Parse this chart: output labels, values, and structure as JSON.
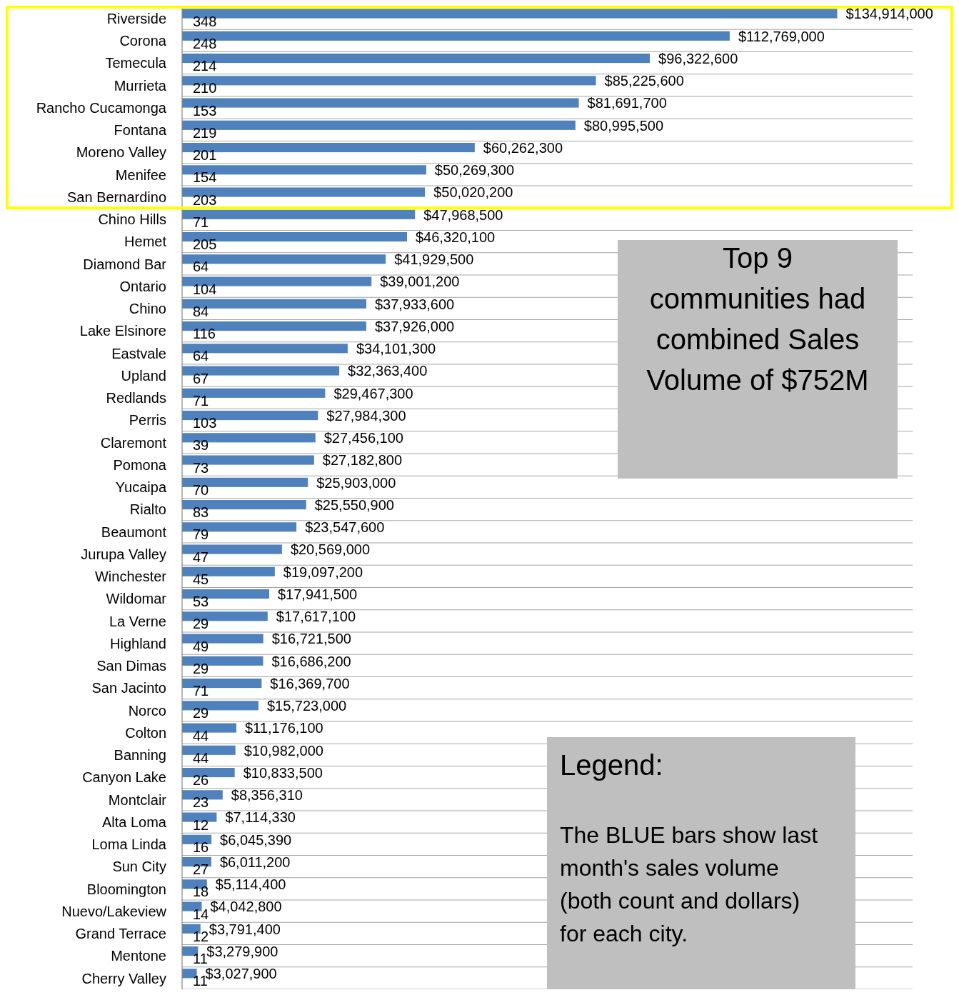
{
  "chart_data": {
    "type": "bar",
    "orientation": "horizontal",
    "grid": true,
    "categories": [
      "Riverside",
      "Corona",
      "Temecula",
      "Murrieta",
      "Rancho Cucamonga",
      "Fontana",
      "Moreno Valley",
      "Menifee",
      "San Bernardino",
      "Chino Hills",
      "Hemet",
      "Diamond Bar",
      "Ontario",
      "Chino",
      "Lake Elsinore",
      "Eastvale",
      "Upland",
      "Redlands",
      "Perris",
      "Claremont",
      "Pomona",
      "Yucaipa",
      "Rialto",
      "Beaumont",
      "Jurupa Valley",
      "Winchester",
      "Wildomar",
      "La Verne",
      "Highland",
      "San Dimas",
      "San Jacinto",
      "Norco",
      "Colton",
      "Banning",
      "Canyon Lake",
      "Montclair",
      "Alta Loma",
      "Loma Linda",
      "Sun City",
      "Bloomington",
      "Nuevo/Lakeview",
      "Grand Terrace",
      "Mentone",
      "Cherry Valley"
    ],
    "series": [
      {
        "color": "#4f81bd",
        "values": [
          134914000,
          112769000,
          96322600,
          85225600,
          81691700,
          80995500,
          60262300,
          50269300,
          50020200,
          47968500,
          46320100,
          41929500,
          39001200,
          37933600,
          37926000,
          34101300,
          32363400,
          29467300,
          27984300,
          27456100,
          27182800,
          25903000,
          25550900,
          23547600,
          20569000,
          19097200,
          17941500,
          17617100,
          16721500,
          16686200,
          16369700,
          15723000,
          11176100,
          10982000,
          10833500,
          8356310,
          7114330,
          6045390,
          6011200,
          5114400,
          4042800,
          3791400,
          3279900,
          3027900
        ],
        "value_labels": [
          "$134,914,000",
          "$112,769,000",
          "$96,322,600",
          "$85,225,600",
          "$81,691,700",
          "$80,995,500",
          "$60,262,300",
          "$50,269,300",
          "$50,020,200",
          "$47,968,500",
          "$46,320,100",
          "$41,929,500",
          "$39,001,200",
          "$37,933,600",
          "$37,926,000",
          "$34,101,300",
          "$32,363,400",
          "$29,467,300",
          "$27,984,300",
          "$27,456,100",
          "$27,182,800",
          "$25,903,000",
          "$25,550,900",
          "$23,547,600",
          "$20,569,000",
          "$19,097,200",
          "$17,941,500",
          "$17,617,100",
          "$16,721,500",
          "$16,686,200",
          "$16,369,700",
          "$15,723,000",
          "$11,176,100",
          "$10,982,000",
          "$10,833,500",
          "$8,356,310",
          "$7,114,330",
          "$6,045,390",
          "$6,011,200",
          "$5,114,400",
          "$4,042,800",
          "$3,791,400",
          "$3,279,900",
          "$3,027,900"
        ]
      },
      {
        "color": "#c0504d",
        "values": [
          348,
          248,
          214,
          210,
          153,
          219,
          201,
          154,
          203,
          71,
          205,
          64,
          104,
          84,
          116,
          64,
          67,
          71,
          103,
          39,
          73,
          70,
          83,
          79,
          47,
          45,
          53,
          29,
          49,
          29,
          71,
          29,
          44,
          44,
          26,
          23,
          12,
          16,
          27,
          18,
          14,
          12,
          11,
          11
        ],
        "value_labels": [
          "348",
          "248",
          "214",
          "210",
          "153",
          "219",
          "201",
          "154",
          "203",
          "71",
          "205",
          "64",
          "104",
          "84",
          "116",
          "64",
          "67",
          "71",
          "103",
          "39",
          "73",
          "70",
          "83",
          "79",
          "47",
          "45",
          "53",
          "29",
          "49",
          "29",
          "71",
          "29",
          "44",
          "44",
          "26",
          "23",
          "12",
          "16",
          "27",
          "18",
          "14",
          "12",
          "11",
          "11"
        ]
      }
    ],
    "annotations": [
      "Top 9\ncommunities had\ncombined Sales\nVolume of $752M",
      "Legend:",
      "The BLUE bars show last\nmonth's sales volume\n(both count and dollars)\nfor each city."
    ]
  }
}
